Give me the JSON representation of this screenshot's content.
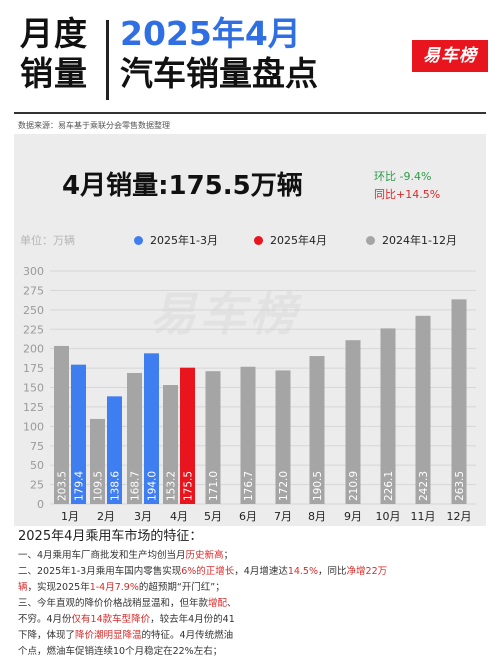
{
  "header": {
    "left_line1": "月度",
    "left_line2": "销量",
    "title_line1": "2025年4月",
    "title_line2": "汽车销量盘点",
    "logo": "易车榜"
  },
  "source": "数据来源：易车基于乘联分会零售数据整理",
  "headline": "4月销量:175.5万辆",
  "mom": "环比 -9.4%",
  "yoy": "同比+14.5%",
  "unit_label": "单位：万辆",
  "watermark": "易车榜",
  "colors": {
    "blue": "#3f7ef0",
    "red": "#e8141e",
    "gray": "#a5a5a5"
  },
  "chart_data": {
    "type": "bar",
    "ylim": [
      0,
      300
    ],
    "yticks": [
      0,
      25,
      50,
      75,
      100,
      125,
      150,
      175,
      200,
      225,
      250,
      275,
      300
    ],
    "legend": [
      {
        "name": "2025年1-3月",
        "color": "#3f7ef0"
      },
      {
        "name": "2025年4月",
        "color": "#e8141e"
      },
      {
        "name": "2024年1-12月",
        "color": "#a5a5a5"
      }
    ],
    "categories": [
      "1月",
      "2月",
      "3月",
      "4月",
      "5月",
      "6月",
      "7月",
      "8月",
      "9月",
      "10月",
      "11月",
      "12月"
    ],
    "series": [
      {
        "name": "2024年1-12月",
        "values": [
          203.5,
          109.5,
          168.7,
          153.2,
          171.0,
          176.7,
          172.0,
          190.5,
          210.9,
          226.1,
          242.3,
          263.5
        ]
      },
      {
        "name": "2025年1-3月",
        "values": [
          179.4,
          138.6,
          194.0,
          null,
          null,
          null,
          null,
          null,
          null,
          null,
          null,
          null
        ]
      },
      {
        "name": "2025年4月",
        "values": [
          null,
          null,
          null,
          175.5,
          null,
          null,
          null,
          null,
          null,
          null,
          null,
          null
        ]
      }
    ],
    "labels": [
      "203.5",
      "179.4",
      "109.5",
      "138.6",
      "168.7",
      "194.0",
      "153.2",
      "175.5",
      "171.0",
      "176.7",
      "172.0",
      "190.5",
      "210.9",
      "226.1",
      "242.3",
      "263.5"
    ]
  },
  "bottom": {
    "title": "2025年4月乘用车市场的特征：",
    "l1a": "一、4月乘用车厂商批发和生产均创当月",
    "l1b": "历史新高",
    "l1c": "；",
    "l2a": "二、2025年1-3月乘用车国内零售实现",
    "l2b": "6%的正增长",
    "l2c": "，4月增速达",
    "l2d": "14.5%",
    "l2e": "，同比",
    "l2f": "净增22万",
    "l3a": "辆",
    "l3b": "，实现2025年",
    "l3c": "1-4月7.9%",
    "l3d": "的超预期“开门红”；",
    "l4a": "三、今年直观的降价价格战稍显温和，但年款",
    "l4b": "增配",
    "l4c": "、",
    "l5a": "不穷。4月份",
    "l5b": "仅有14款车型降价",
    "l5c": "，较去年4月份的41",
    "l6a": "下降，体现了",
    "l6b": "降价潮明显降温",
    "l6c": "的特征。4月传统燃油",
    "l7": "个点，燃油车促销连续10个月稳定在22%左右；"
  }
}
